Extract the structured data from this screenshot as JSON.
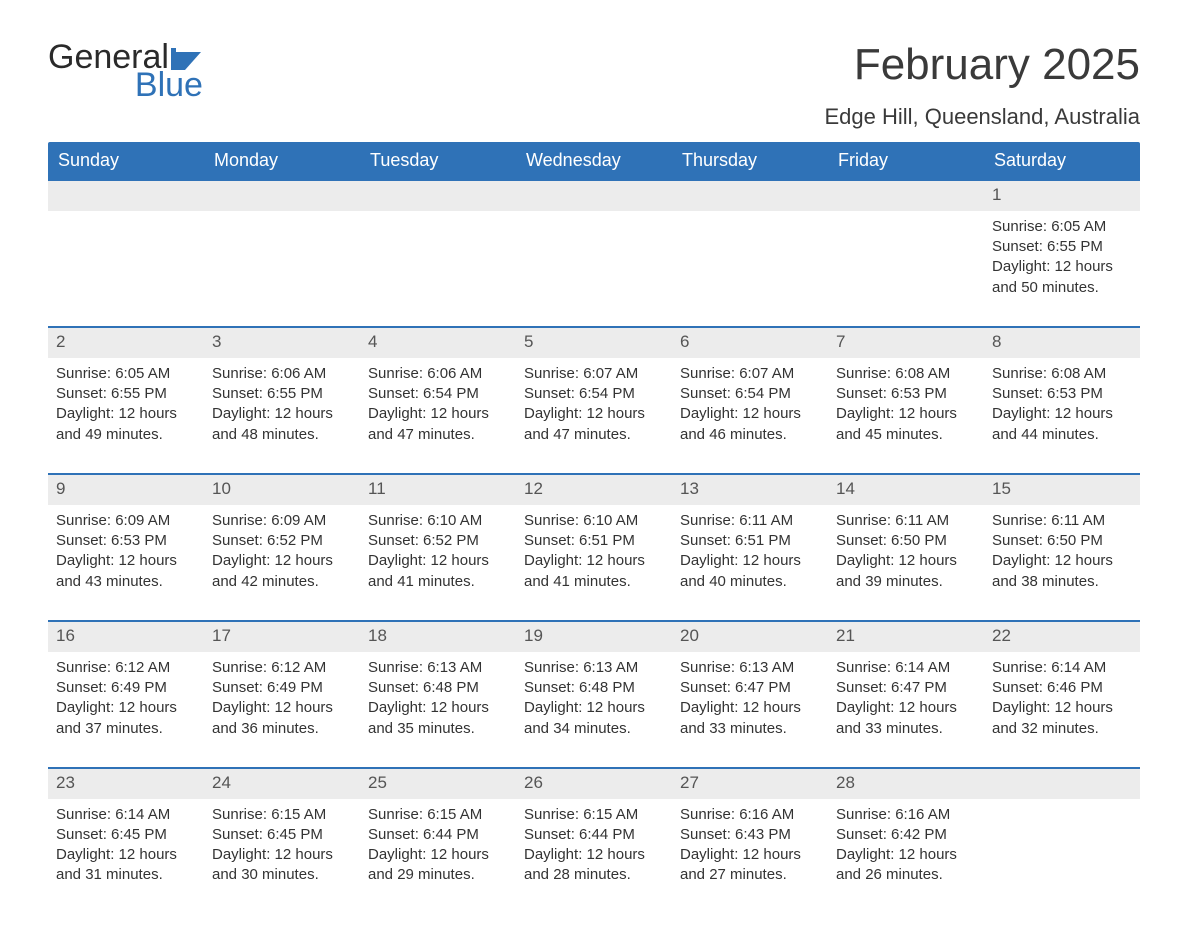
{
  "brand": {
    "word1": "General",
    "word2": "Blue",
    "accent_color": "#2f72b7"
  },
  "title": "February 2025",
  "location": "Edge Hill, Queensland, Australia",
  "colors": {
    "header_bg": "#2f72b7",
    "header_text": "#ffffff",
    "band_bg": "#ececec",
    "body_text": "#333333",
    "week_divider": "#2f72b7",
    "page_bg": "#ffffff"
  },
  "days_of_week": [
    "Sunday",
    "Monday",
    "Tuesday",
    "Wednesday",
    "Thursday",
    "Friday",
    "Saturday"
  ],
  "weeks": [
    [
      {
        "n": "",
        "sunrise": "",
        "sunset": "",
        "daylight": ""
      },
      {
        "n": "",
        "sunrise": "",
        "sunset": "",
        "daylight": ""
      },
      {
        "n": "",
        "sunrise": "",
        "sunset": "",
        "daylight": ""
      },
      {
        "n": "",
        "sunrise": "",
        "sunset": "",
        "daylight": ""
      },
      {
        "n": "",
        "sunrise": "",
        "sunset": "",
        "daylight": ""
      },
      {
        "n": "",
        "sunrise": "",
        "sunset": "",
        "daylight": ""
      },
      {
        "n": "1",
        "sunrise": "Sunrise: 6:05 AM",
        "sunset": "Sunset: 6:55 PM",
        "daylight": "Daylight: 12 hours and 50 minutes."
      }
    ],
    [
      {
        "n": "2",
        "sunrise": "Sunrise: 6:05 AM",
        "sunset": "Sunset: 6:55 PM",
        "daylight": "Daylight: 12 hours and 49 minutes."
      },
      {
        "n": "3",
        "sunrise": "Sunrise: 6:06 AM",
        "sunset": "Sunset: 6:55 PM",
        "daylight": "Daylight: 12 hours and 48 minutes."
      },
      {
        "n": "4",
        "sunrise": "Sunrise: 6:06 AM",
        "sunset": "Sunset: 6:54 PM",
        "daylight": "Daylight: 12 hours and 47 minutes."
      },
      {
        "n": "5",
        "sunrise": "Sunrise: 6:07 AM",
        "sunset": "Sunset: 6:54 PM",
        "daylight": "Daylight: 12 hours and 47 minutes."
      },
      {
        "n": "6",
        "sunrise": "Sunrise: 6:07 AM",
        "sunset": "Sunset: 6:54 PM",
        "daylight": "Daylight: 12 hours and 46 minutes."
      },
      {
        "n": "7",
        "sunrise": "Sunrise: 6:08 AM",
        "sunset": "Sunset: 6:53 PM",
        "daylight": "Daylight: 12 hours and 45 minutes."
      },
      {
        "n": "8",
        "sunrise": "Sunrise: 6:08 AM",
        "sunset": "Sunset: 6:53 PM",
        "daylight": "Daylight: 12 hours and 44 minutes."
      }
    ],
    [
      {
        "n": "9",
        "sunrise": "Sunrise: 6:09 AM",
        "sunset": "Sunset: 6:53 PM",
        "daylight": "Daylight: 12 hours and 43 minutes."
      },
      {
        "n": "10",
        "sunrise": "Sunrise: 6:09 AM",
        "sunset": "Sunset: 6:52 PM",
        "daylight": "Daylight: 12 hours and 42 minutes."
      },
      {
        "n": "11",
        "sunrise": "Sunrise: 6:10 AM",
        "sunset": "Sunset: 6:52 PM",
        "daylight": "Daylight: 12 hours and 41 minutes."
      },
      {
        "n": "12",
        "sunrise": "Sunrise: 6:10 AM",
        "sunset": "Sunset: 6:51 PM",
        "daylight": "Daylight: 12 hours and 41 minutes."
      },
      {
        "n": "13",
        "sunrise": "Sunrise: 6:11 AM",
        "sunset": "Sunset: 6:51 PM",
        "daylight": "Daylight: 12 hours and 40 minutes."
      },
      {
        "n": "14",
        "sunrise": "Sunrise: 6:11 AM",
        "sunset": "Sunset: 6:50 PM",
        "daylight": "Daylight: 12 hours and 39 minutes."
      },
      {
        "n": "15",
        "sunrise": "Sunrise: 6:11 AM",
        "sunset": "Sunset: 6:50 PM",
        "daylight": "Daylight: 12 hours and 38 minutes."
      }
    ],
    [
      {
        "n": "16",
        "sunrise": "Sunrise: 6:12 AM",
        "sunset": "Sunset: 6:49 PM",
        "daylight": "Daylight: 12 hours and 37 minutes."
      },
      {
        "n": "17",
        "sunrise": "Sunrise: 6:12 AM",
        "sunset": "Sunset: 6:49 PM",
        "daylight": "Daylight: 12 hours and 36 minutes."
      },
      {
        "n": "18",
        "sunrise": "Sunrise: 6:13 AM",
        "sunset": "Sunset: 6:48 PM",
        "daylight": "Daylight: 12 hours and 35 minutes."
      },
      {
        "n": "19",
        "sunrise": "Sunrise: 6:13 AM",
        "sunset": "Sunset: 6:48 PM",
        "daylight": "Daylight: 12 hours and 34 minutes."
      },
      {
        "n": "20",
        "sunrise": "Sunrise: 6:13 AM",
        "sunset": "Sunset: 6:47 PM",
        "daylight": "Daylight: 12 hours and 33 minutes."
      },
      {
        "n": "21",
        "sunrise": "Sunrise: 6:14 AM",
        "sunset": "Sunset: 6:47 PM",
        "daylight": "Daylight: 12 hours and 33 minutes."
      },
      {
        "n": "22",
        "sunrise": "Sunrise: 6:14 AM",
        "sunset": "Sunset: 6:46 PM",
        "daylight": "Daylight: 12 hours and 32 minutes."
      }
    ],
    [
      {
        "n": "23",
        "sunrise": "Sunrise: 6:14 AM",
        "sunset": "Sunset: 6:45 PM",
        "daylight": "Daylight: 12 hours and 31 minutes."
      },
      {
        "n": "24",
        "sunrise": "Sunrise: 6:15 AM",
        "sunset": "Sunset: 6:45 PM",
        "daylight": "Daylight: 12 hours and 30 minutes."
      },
      {
        "n": "25",
        "sunrise": "Sunrise: 6:15 AM",
        "sunset": "Sunset: 6:44 PM",
        "daylight": "Daylight: 12 hours and 29 minutes."
      },
      {
        "n": "26",
        "sunrise": "Sunrise: 6:15 AM",
        "sunset": "Sunset: 6:44 PM",
        "daylight": "Daylight: 12 hours and 28 minutes."
      },
      {
        "n": "27",
        "sunrise": "Sunrise: 6:16 AM",
        "sunset": "Sunset: 6:43 PM",
        "daylight": "Daylight: 12 hours and 27 minutes."
      },
      {
        "n": "28",
        "sunrise": "Sunrise: 6:16 AM",
        "sunset": "Sunset: 6:42 PM",
        "daylight": "Daylight: 12 hours and 26 minutes."
      },
      {
        "n": "",
        "sunrise": "",
        "sunset": "",
        "daylight": ""
      }
    ]
  ]
}
